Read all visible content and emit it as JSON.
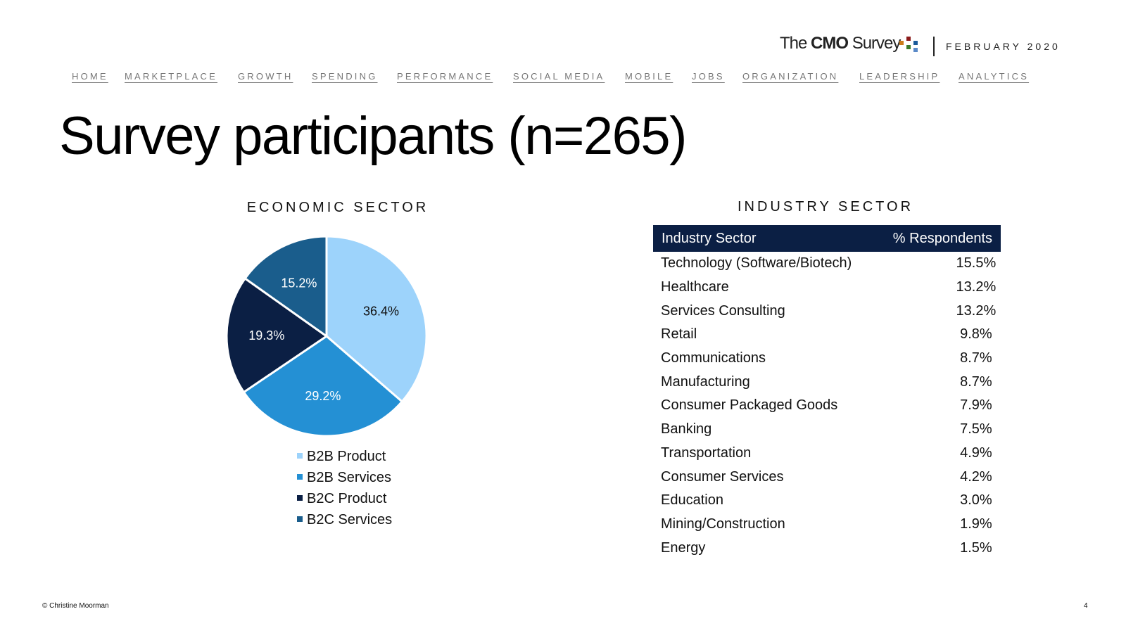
{
  "header": {
    "brand": {
      "prefix": "The ",
      "strong": "CMO",
      "suffix": " Survey"
    },
    "logo_dot_colors": [
      "#8b1a1a",
      "#cc7a1a",
      "#3a7a2a",
      "#1a5a9a",
      "#5a8ac8"
    ],
    "date": "FEBRUARY 2020"
  },
  "nav": [
    "HOME",
    "MARKETPLACE",
    "GROWTH",
    "SPENDING",
    "PERFORMANCE",
    "SOCIAL MEDIA",
    "MOBILE",
    "JOBS",
    "ORGANIZATION",
    "LEADERSHIP",
    "ANALYTICS"
  ],
  "page_title": "Survey participants (n=265)",
  "chart_data": [
    {
      "type": "pie",
      "title": "ECONOMIC SECTOR",
      "categories": [
        "B2B Product",
        "B2B Services",
        "B2C Product",
        "B2C Services"
      ],
      "values": [
        36.4,
        29.2,
        19.3,
        15.2
      ],
      "labels": [
        "36.4%",
        "29.2%",
        "19.3%",
        "15.2%"
      ],
      "colors": [
        "#9dd3fb",
        "#2490d4",
        "#0b1f44",
        "#1a5d8c"
      ],
      "label_colors": [
        "#111111",
        "#ffffff",
        "#ffffff",
        "#ffffff"
      ],
      "legend_position": "bottom"
    },
    {
      "type": "table",
      "title": "INDUSTRY SECTOR",
      "columns": [
        "Industry Sector",
        "% Respondents"
      ],
      "rows": [
        [
          "Technology (Software/Biotech)",
          "15.5%"
        ],
        [
          "Healthcare",
          "13.2%"
        ],
        [
          "Services Consulting",
          "13.2%"
        ],
        [
          "Retail",
          "9.8%"
        ],
        [
          "Communications",
          "8.7%"
        ],
        [
          "Manufacturing",
          "8.7%"
        ],
        [
          "Consumer Packaged Goods",
          "7.9%"
        ],
        [
          "Banking",
          "7.5%"
        ],
        [
          "Transportation",
          "4.9%"
        ],
        [
          "Consumer Services",
          "4.2%"
        ],
        [
          "Education",
          "3.0%"
        ],
        [
          "Mining/Construction",
          "1.9%"
        ],
        [
          "Energy",
          "1.5%"
        ]
      ],
      "header_color": "#0b1f44"
    }
  ],
  "footer": {
    "copyright": "© Christine Moorman",
    "page_number": "4"
  }
}
